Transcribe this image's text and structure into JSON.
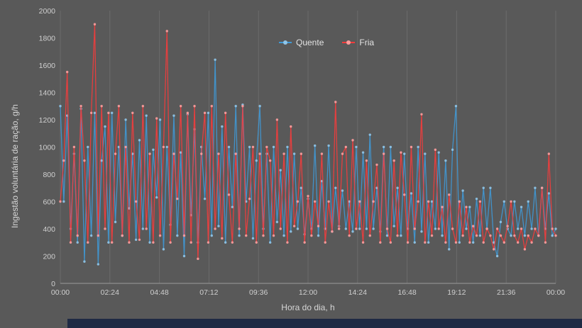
{
  "page": {
    "background_color": "#595959",
    "bottom_bar_color": "#1f2a44"
  },
  "chart_data": {
    "type": "line",
    "title": "",
    "xlabel": "Hora do dia, h",
    "ylabel": "Ingestão voluntária de ração, g/h",
    "ylim": [
      0,
      2000
    ],
    "y_ticks": [
      0,
      200,
      400,
      600,
      800,
      1000,
      1200,
      1400,
      1600,
      1800,
      2000
    ],
    "x_ticks_minutes": [
      0,
      144,
      288,
      432,
      576,
      720,
      864,
      1008,
      1152,
      1296,
      1440
    ],
    "x_tick_labels": [
      "00:00",
      "02:24",
      "04:48",
      "07:12",
      "09:36",
      "12:00",
      "14:24",
      "16:48",
      "19:12",
      "21:36",
      "00:00"
    ],
    "x_step_minutes": 10,
    "grid": "vertical-only",
    "legend_position": "top-center",
    "grid_color": "#6b6b6b",
    "axis_color": "#9a9a9a",
    "tick_label_color": "#d0d0d0",
    "series": [
      {
        "name": "Quente",
        "color": "#3f9ad8",
        "marker_color": "#8fc6ea",
        "values": [
          1300,
          600,
          1230,
          400,
          950,
          300,
          1280,
          160,
          1000,
          350,
          1250,
          140,
          900,
          1150,
          300,
          1250,
          450,
          1000,
          350,
          1200,
          550,
          950,
          320,
          1050,
          400,
          1230,
          300,
          980,
          630,
          1200,
          250,
          1000,
          430,
          1230,
          350,
          960,
          200,
          1240,
          500,
          1130,
          300,
          1000,
          620,
          1250,
          350,
          1640,
          420,
          1150,
          300,
          1000,
          560,
          1300,
          350,
          1310,
          600,
          1000,
          330,
          900,
          1300,
          400,
          950,
          300,
          1000,
          450,
          830,
          350,
          1000,
          380,
          950,
          400,
          700,
          360,
          620,
          400,
          1010,
          350,
          750,
          400,
          1010,
          380,
          700,
          420,
          680,
          400,
          600,
          380,
          1000,
          400,
          960,
          400,
          1090,
          400,
          700,
          380,
          1000,
          350,
          1000,
          420,
          700,
          350,
          950,
          400,
          660,
          300,
          1000,
          380,
          950,
          300,
          600,
          400,
          960,
          350,
          900,
          250,
          980,
          1300,
          300,
          680,
          400,
          560,
          300,
          620,
          350,
          700,
          400,
          700,
          300,
          200,
          450,
          600,
          400,
          350,
          600,
          400,
          560,
          350,
          600,
          400,
          700,
          350,
          700,
          400,
          660,
          350,
          400
        ]
      },
      {
        "name": "Fria",
        "color": "#f73b3b",
        "marker_color": "#ff9d9d",
        "values": [
          600,
          900,
          1550,
          300,
          1000,
          350,
          1300,
          900,
          300,
          1250,
          1900,
          350,
          1300,
          400,
          1250,
          300,
          950,
          1300,
          350,
          1000,
          300,
          1250,
          600,
          320,
          1300,
          400,
          950,
          300,
          1210,
          350,
          1000,
          1850,
          300,
          950,
          620,
          1300,
          350,
          1250,
          300,
          1300,
          180,
          950,
          1250,
          300,
          1300,
          400,
          950,
          330,
          1250,
          650,
          300,
          950,
          400,
          1300,
          350,
          620,
          1000,
          300,
          950,
          350,
          1000,
          900,
          350,
          1200,
          400,
          950,
          300,
          1150,
          420,
          600,
          950,
          300,
          640,
          350,
          600,
          420,
          950,
          300,
          600,
          380,
          1330,
          400,
          950,
          1000,
          350,
          1050,
          400,
          600,
          300,
          900,
          350,
          600,
          870,
          300,
          950,
          400,
          300,
          900,
          350,
          960,
          650,
          300,
          1000,
          400,
          600,
          1240,
          300,
          600,
          350,
          980,
          400,
          560,
          300,
          650,
          400,
          300,
          600,
          350,
          560,
          300,
          420,
          350,
          600,
          300,
          400,
          350,
          250,
          400,
          350,
          300,
          420,
          600,
          350,
          300,
          400,
          250,
          350,
          300,
          400,
          350,
          700,
          300,
          950,
          400,
          350
        ]
      }
    ]
  }
}
